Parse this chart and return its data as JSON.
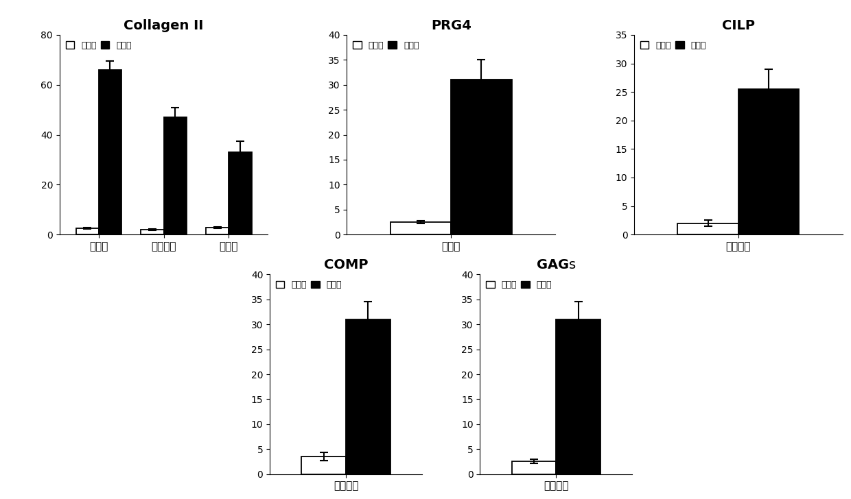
{
  "charts": [
    {
      "title": "Collagen II",
      "categories": [
        "表层区",
        "中深层区",
        "馒化区"
      ],
      "control_values": [
        2.5,
        2.0,
        2.8
      ],
      "control_errors": [
        0.3,
        0.3,
        0.3
      ],
      "experiment_values": [
        66,
        47,
        33
      ],
      "experiment_errors": [
        3.5,
        4.0,
        4.5
      ],
      "ylim": [
        0,
        80
      ],
      "yticks": [
        0,
        20,
        40,
        60,
        80
      ]
    },
    {
      "title": "PRG4",
      "categories": [
        "表层区"
      ],
      "control_values": [
        2.5
      ],
      "control_errors": [
        0.3
      ],
      "experiment_values": [
        31
      ],
      "experiment_errors": [
        4.0
      ],
      "ylim": [
        0,
        40
      ],
      "yticks": [
        0,
        5,
        10,
        15,
        20,
        25,
        30,
        35,
        40
      ]
    },
    {
      "title": "CILP",
      "categories": [
        "中深层区"
      ],
      "control_values": [
        2.0
      ],
      "control_errors": [
        0.5
      ],
      "experiment_values": [
        25.5
      ],
      "experiment_errors": [
        3.5
      ],
      "ylim": [
        0,
        35
      ],
      "yticks": [
        0,
        5,
        10,
        15,
        20,
        25,
        30,
        35
      ]
    },
    {
      "title": "COMP",
      "categories": [
        "中深层区"
      ],
      "control_values": [
        3.5
      ],
      "control_errors": [
        0.8
      ],
      "experiment_values": [
        31
      ],
      "experiment_errors": [
        3.5
      ],
      "ylim": [
        0,
        40
      ],
      "yticks": [
        0,
        5,
        10,
        15,
        20,
        25,
        30,
        35,
        40
      ]
    },
    {
      "title": "GAGs",
      "categories": [
        "馒化层区"
      ],
      "control_values": [
        2.5
      ],
      "control_errors": [
        0.4
      ],
      "experiment_values": [
        31
      ],
      "experiment_errors": [
        3.5
      ],
      "ylim": [
        0,
        40
      ],
      "yticks": [
        0,
        5,
        10,
        15,
        20,
        25,
        30,
        35,
        40
      ]
    }
  ],
  "legend_label_control": "对照组",
  "legend_label_experiment": "实验组",
  "bar_width": 0.35,
  "control_color": "#ffffff",
  "control_edgecolor": "#000000",
  "experiment_color": "#000000",
  "experiment_edgecolor": "#000000",
  "background_color": "#ffffff",
  "title_fontsize": 14,
  "tick_fontsize": 10,
  "legend_fontsize": 9,
  "xlabel_fontsize": 11
}
